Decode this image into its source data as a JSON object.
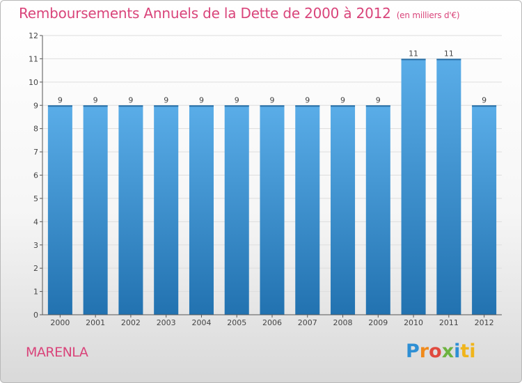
{
  "header": {
    "title": "Remboursements Annuels de la Dette de 2000 à 2012",
    "subtitle": "(en milliers d'€)"
  },
  "footer": {
    "commune": "MARENLA",
    "logo_letters": [
      "P",
      "r",
      "o",
      "x",
      "i",
      "ti"
    ]
  },
  "chart_data": {
    "type": "bar",
    "title": "Remboursements Annuels de la Dette de 2000 à 2012",
    "subtitle": "(en milliers d'€)",
    "categories": [
      "2000",
      "2001",
      "2002",
      "2003",
      "2004",
      "2005",
      "2006",
      "2007",
      "2008",
      "2009",
      "2010",
      "2011",
      "2012"
    ],
    "values": [
      9,
      9,
      9,
      9,
      9,
      9,
      9,
      9,
      9,
      9,
      11,
      11,
      9
    ],
    "data_labels": [
      "9",
      "9",
      "9",
      "9",
      "9",
      "9",
      "9",
      "9",
      "9",
      "9",
      "11",
      "11",
      "9"
    ],
    "yticks": [
      0,
      1,
      2,
      3,
      4,
      5,
      6,
      7,
      8,
      9,
      10,
      11,
      12
    ],
    "ylim": [
      0,
      12
    ],
    "grid": true,
    "colors": {
      "bar_top": "#5aade8",
      "bar_bottom": "#2272b0",
      "grid": "#dddddd",
      "axis": "#555555",
      "text": "#444444"
    }
  }
}
